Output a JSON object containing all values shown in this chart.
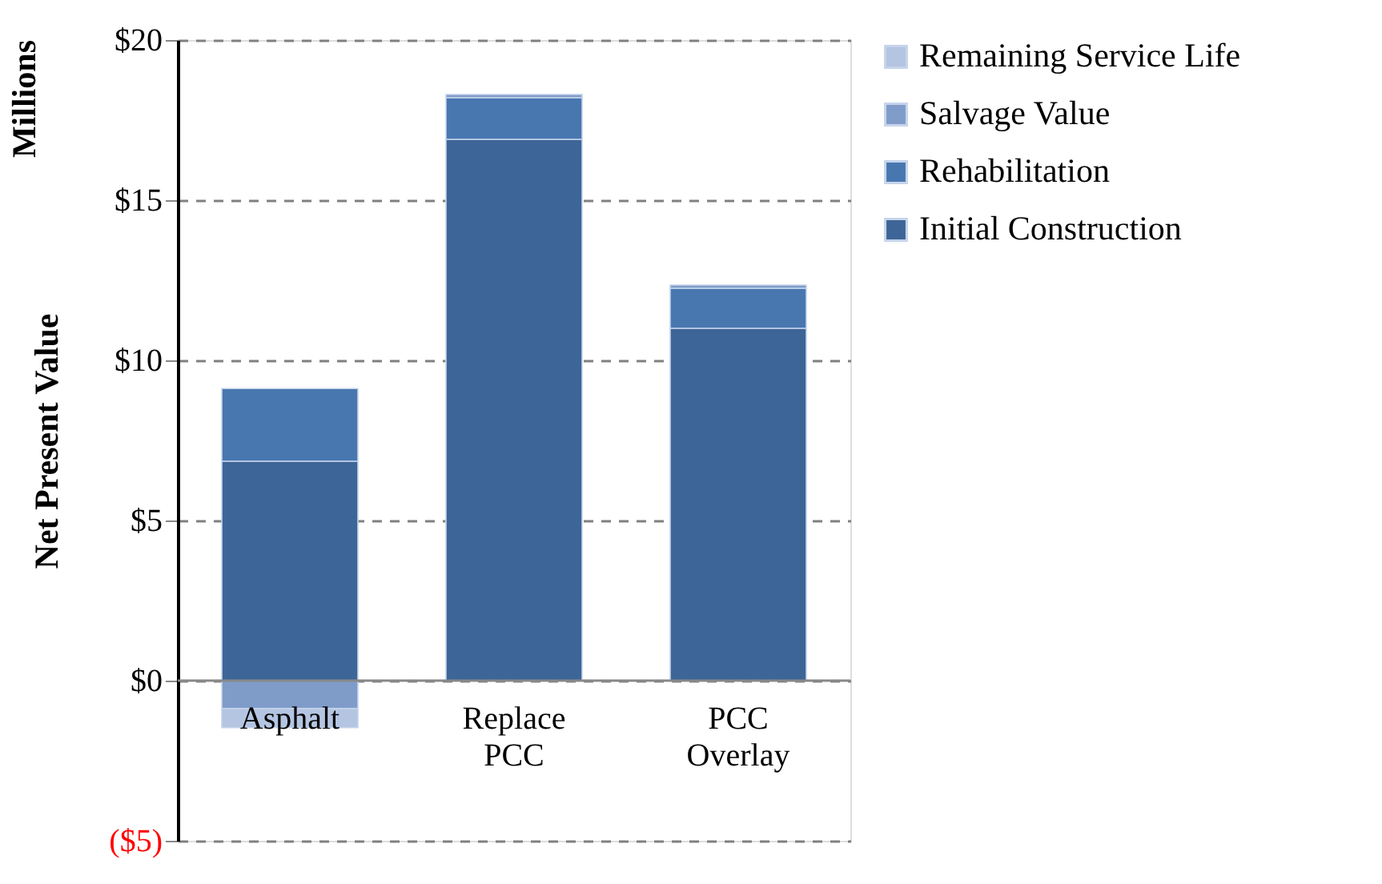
{
  "chart_data": {
    "type": "bar",
    "stacked": true,
    "ylabel": "Net Present Value",
    "annotations": [
      "Millions"
    ],
    "categories": [
      "Asphalt",
      "Replace PCC",
      "PCC Overlay"
    ],
    "series": [
      {
        "name": "Initial Construction",
        "color": "#3d6597",
        "values": [
          6.85,
          16.9,
          11.0
        ]
      },
      {
        "name": "Rehabilitation",
        "color": "#4877b0",
        "values": [
          2.27,
          1.3,
          1.25
        ]
      },
      {
        "name": "Salvage Value",
        "color": "#7f9cc9",
        "values": [
          -0.87,
          0.1,
          0.1
        ]
      },
      {
        "name": "Remaining Service Life",
        "color": "#b4c5e2",
        "values": [
          -0.6,
          null,
          null
        ]
      }
    ],
    "ylim": [
      -5,
      20
    ],
    "yticks": [
      {
        "value": -5,
        "label": "($5)"
      },
      {
        "value": 0,
        "label": "$0"
      },
      {
        "value": 5,
        "label": "$5"
      },
      {
        "value": 10,
        "label": "$10"
      },
      {
        "value": 15,
        "label": "$15"
      },
      {
        "value": 20,
        "label": "$20"
      }
    ],
    "grid": "y",
    "legend": "right"
  }
}
